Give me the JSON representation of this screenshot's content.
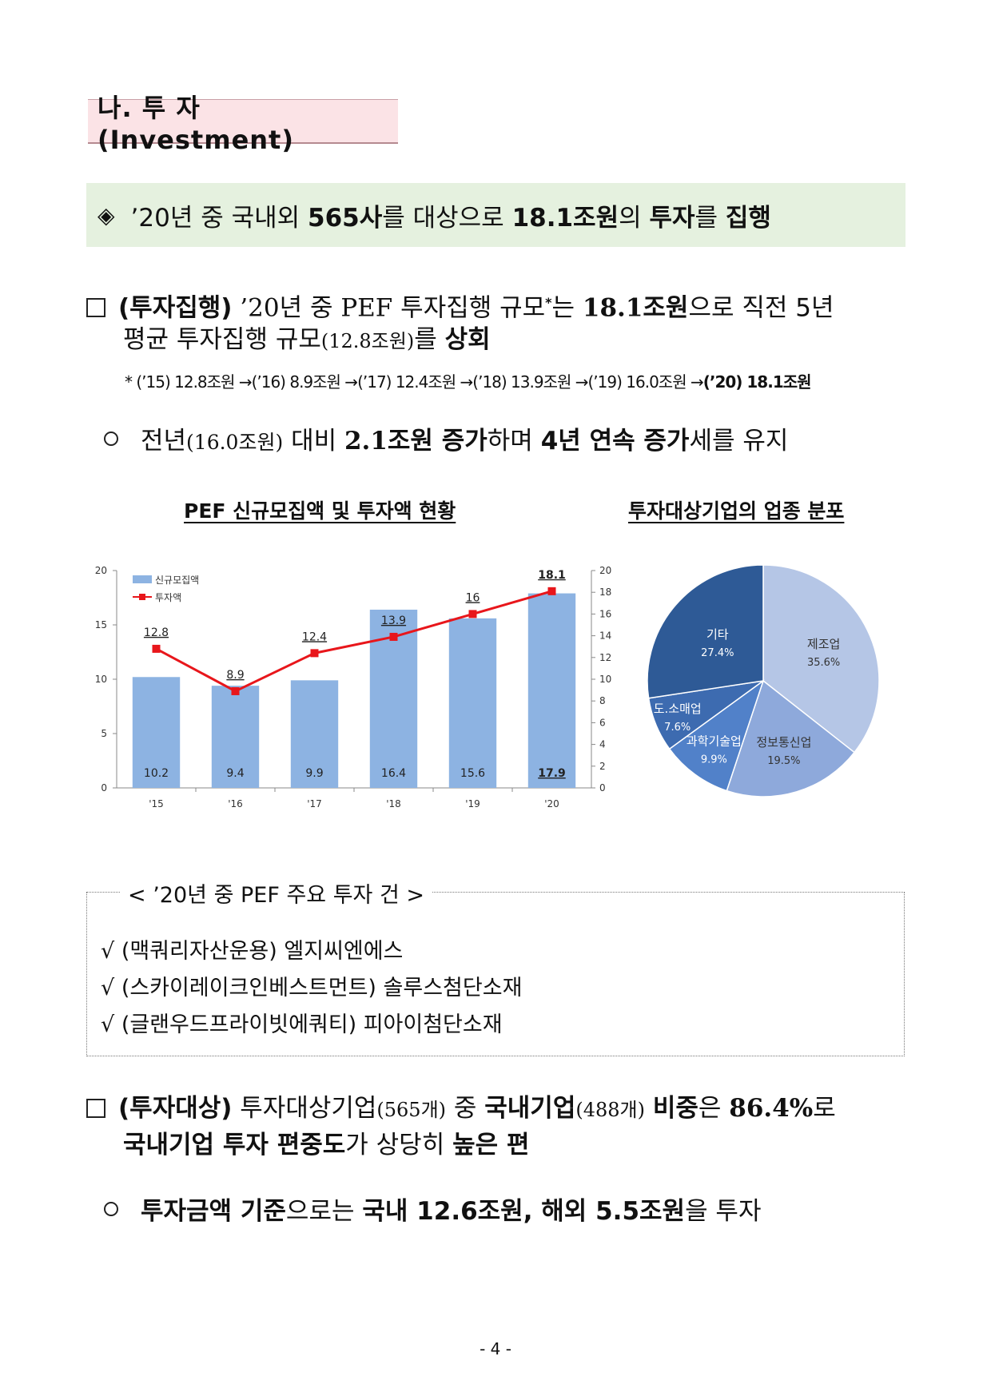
{
  "section_title": "나. 투 자 (Investment)",
  "summary": {
    "diamond": "◈",
    "p1": "’20년 중 국내외 ",
    "b1": "565사",
    "p2": "를 대상으로 ",
    "b2": "18.1조원",
    "p3": "의 ",
    "b3": "투자",
    "p4": "를 ",
    "b4": "집행"
  },
  "para1": {
    "label": "(투자집행)",
    "t1": " ’20년 중 PEF 투자집행 규모",
    "star": "*",
    "t2": "는 ",
    "b1": "18.1조원",
    "t3": "으로 직전 5년",
    "line2_a": "평균 투자집행 규모",
    "line2_small": "(12.8조원)",
    "line2_b": "를 ",
    "line2_bold": "상회"
  },
  "note": {
    "prefix": "* (’15) 12.8조원 →(’16) 8.9조원 →(’17) 12.4조원 →(’18) 13.9조원 →(’19) 16.0조원 →",
    "bold": "(’20) 18.1조원"
  },
  "bullet1": {
    "a": "전년",
    "small": "(16.0조원)",
    "b": " 대비 ",
    "c": "2.1조원 증가",
    "d": "하며 ",
    "e": "4년 연속 증가",
    "f": "세를 유지"
  },
  "chart_titles": {
    "left": "PEF 신규모집액 및 투자액 현황",
    "right": "투자대상기업의 업종 분포"
  },
  "chart_data": [
    {
      "type": "bar",
      "categories": [
        "'15",
        "'16",
        "'17",
        "'18",
        "'19",
        "'20"
      ],
      "series": [
        {
          "name": "신규모집액",
          "type": "bar",
          "axis": "left",
          "values": [
            10.2,
            9.4,
            9.9,
            16.4,
            15.6,
            17.9
          ],
          "labels": [
            "10.2",
            "9.4",
            "9.9",
            "16.4",
            "15.6",
            "17.9"
          ]
        },
        {
          "name": "투자액",
          "type": "line",
          "axis": "right",
          "values": [
            12.8,
            8.9,
            12.4,
            13.9,
            16,
            18.1
          ],
          "labels": [
            "12.8",
            "8.9",
            "12.4",
            "13.9",
            "16",
            "18.1"
          ]
        }
      ],
      "left_axis": {
        "ylim": [
          0,
          20
        ],
        "ticks": [
          "0",
          "5",
          "10",
          "15",
          "20"
        ]
      },
      "right_axis": {
        "ylim": [
          0,
          20
        ],
        "ticks": [
          "0",
          "2",
          "4",
          "6",
          "8",
          "10",
          "12",
          "14",
          "16",
          "18",
          "20"
        ]
      },
      "legend_placement": "top-left",
      "colors": {
        "bar": "#8db3e2",
        "line": "#e8161b"
      }
    },
    {
      "type": "pie",
      "slices": [
        {
          "label": "제조업",
          "value": 35.6,
          "text": "35.6%",
          "color": "#b5c6e6"
        },
        {
          "label": "정보통신업",
          "value": 19.5,
          "text": "19.5%",
          "color": "#8ea9db"
        },
        {
          "label": "과학기술업",
          "value": 9.9,
          "text": "9.9%",
          "color": "#5181c9"
        },
        {
          "label": "도.소매업",
          "value": 7.6,
          "text": "7.6%",
          "color": "#3d6bb0"
        },
        {
          "label": "기타",
          "value": 27.4,
          "text": "27.4%",
          "color": "#2e5a96"
        }
      ]
    }
  ],
  "deals_box": {
    "title": "< ’20년 중 PEF 주요 투자 건 >",
    "check": "√",
    "items": [
      "(맥쿼리자산운용) 엘지씨엔에스",
      "(스카이레이크인베스트먼트) 솔루스첨단소재",
      "(글랜우드프라이빗에쿼티) 피아이첨단소재"
    ]
  },
  "para2": {
    "label": "(투자대상)",
    "t1": " 투자대상기업",
    "s1": "(565개)",
    "t2": " 중 ",
    "b1": "국내기업",
    "s2": "(488개)",
    "t3": " ",
    "b2": "비중",
    "t4": "은 ",
    "b3": "86.4%",
    "t5": "로",
    "line2_a": "국내기업 투자 ",
    "line2_b": "편중도",
    "line2_c": "가 상당히 ",
    "line2_d": "높은 편"
  },
  "bullet2": {
    "a": "투자금액 기준",
    "b": "으로는 ",
    "c": "국내 12.6조원, 해외 5.5조원",
    "d": "을 투자"
  },
  "page_number": "- 4 -"
}
